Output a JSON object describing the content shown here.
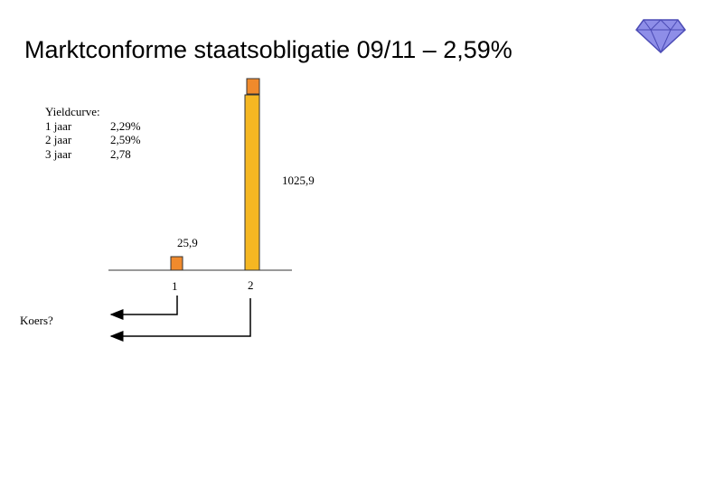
{
  "title": "Marktconforme staatsobligatie 09/11 – 2,59%",
  "yieldcurve": {
    "heading": "Yieldcurve:",
    "rows": [
      {
        "term": "1 jaar",
        "rate": "2,29%"
      },
      {
        "term": "2 jaar",
        "rate": "2,59%"
      },
      {
        "term": "3 jaar",
        "rate": "2,78"
      }
    ]
  },
  "cashflows": [
    {
      "period": "1",
      "amount": "25,9"
    },
    {
      "period": "2",
      "amount": "1025,9"
    }
  ],
  "koers_label": "Koers?",
  "colors": {
    "bar_fill": "#f5b722",
    "bar_top": "#f08a2c",
    "bar_stroke": "#333333",
    "logo_fill": "#8e8ee8",
    "logo_stroke": "#4b4bb5"
  },
  "icons": {
    "logo": "diamond-icon"
  }
}
